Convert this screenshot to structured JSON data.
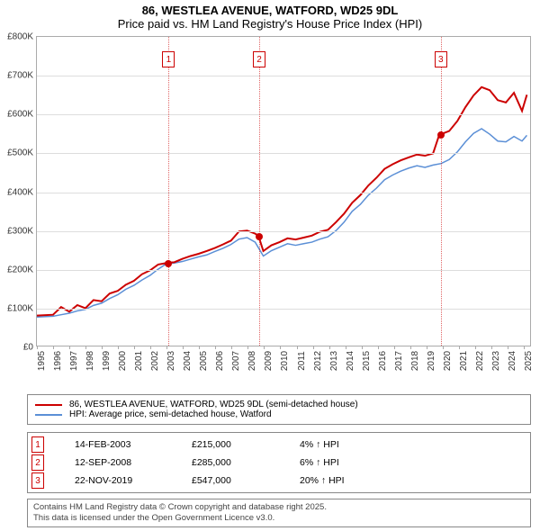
{
  "title": {
    "main": "86, WESTLEA AVENUE, WATFORD, WD25 9DL",
    "sub": "Price paid vs. HM Land Registry's House Price Index (HPI)"
  },
  "chart": {
    "type": "line",
    "background_color": "#ffffff",
    "grid_color": "#dddddd",
    "axis_color": "#aaaaaa",
    "ylim": [
      0,
      800000
    ],
    "ytick_step": 100000,
    "ytick_labels": [
      "£0",
      "£100K",
      "£200K",
      "£300K",
      "£400K",
      "£500K",
      "£600K",
      "£700K",
      "£800K"
    ],
    "xlim": [
      1995,
      2025.5
    ],
    "xticks": [
      1995,
      1996,
      1997,
      1998,
      1999,
      2000,
      2001,
      2002,
      2003,
      2004,
      2005,
      2006,
      2007,
      2008,
      2009,
      2010,
      2011,
      2012,
      2013,
      2014,
      2015,
      2016,
      2017,
      2018,
      2019,
      2020,
      2021,
      2022,
      2023,
      2024,
      2025
    ],
    "series": [
      {
        "name": "86, WESTLEA AVENUE, WATFORD, WD25 9DL (semi-detached house)",
        "color": "#cc0000",
        "width": 2,
        "points": [
          [
            1995,
            78000
          ],
          [
            1996,
            80000
          ],
          [
            1996.5,
            100000
          ],
          [
            1997,
            88000
          ],
          [
            1997.5,
            105000
          ],
          [
            1998,
            97000
          ],
          [
            1998.5,
            118000
          ],
          [
            1999,
            115000
          ],
          [
            1999.5,
            135000
          ],
          [
            2000,
            142000
          ],
          [
            2000.5,
            158000
          ],
          [
            2001,
            168000
          ],
          [
            2001.5,
            185000
          ],
          [
            2002,
            195000
          ],
          [
            2002.5,
            210000
          ],
          [
            2003.12,
            215000
          ],
          [
            2003.5,
            216000
          ],
          [
            2004,
            225000
          ],
          [
            2004.5,
            232000
          ],
          [
            2005,
            238000
          ],
          [
            2005.5,
            245000
          ],
          [
            2006,
            253000
          ],
          [
            2006.5,
            262000
          ],
          [
            2007,
            272000
          ],
          [
            2007.5,
            296000
          ],
          [
            2008,
            298000
          ],
          [
            2008.5,
            290000
          ],
          [
            2008.7,
            285000
          ],
          [
            2009,
            245000
          ],
          [
            2009.5,
            260000
          ],
          [
            2010,
            268000
          ],
          [
            2010.5,
            278000
          ],
          [
            2011,
            275000
          ],
          [
            2011.5,
            280000
          ],
          [
            2012,
            285000
          ],
          [
            2012.5,
            295000
          ],
          [
            2013,
            300000
          ],
          [
            2013.5,
            320000
          ],
          [
            2014,
            342000
          ],
          [
            2014.5,
            370000
          ],
          [
            2015,
            390000
          ],
          [
            2015.5,
            415000
          ],
          [
            2016,
            435000
          ],
          [
            2016.5,
            458000
          ],
          [
            2017,
            470000
          ],
          [
            2017.5,
            480000
          ],
          [
            2018,
            488000
          ],
          [
            2018.5,
            495000
          ],
          [
            2019,
            492000
          ],
          [
            2019.5,
            498000
          ],
          [
            2019.89,
            547000
          ],
          [
            2020,
            548000
          ],
          [
            2020.5,
            556000
          ],
          [
            2021,
            582000
          ],
          [
            2021.5,
            618000
          ],
          [
            2022,
            648000
          ],
          [
            2022.5,
            670000
          ],
          [
            2023,
            662000
          ],
          [
            2023.5,
            636000
          ],
          [
            2024,
            630000
          ],
          [
            2024.5,
            655000
          ],
          [
            2025,
            608000
          ],
          [
            2025.3,
            650000
          ]
        ]
      },
      {
        "name": "HPI: Average price, semi-detached house, Watford",
        "color": "#5b8fd6",
        "width": 1.5,
        "points": [
          [
            1995,
            74000
          ],
          [
            1996,
            76000
          ],
          [
            1996.5,
            80000
          ],
          [
            1997,
            84000
          ],
          [
            1997.5,
            90000
          ],
          [
            1998,
            94000
          ],
          [
            1998.5,
            104000
          ],
          [
            1999,
            110000
          ],
          [
            1999.5,
            122000
          ],
          [
            2000,
            132000
          ],
          [
            2000.5,
            146000
          ],
          [
            2001,
            156000
          ],
          [
            2001.5,
            170000
          ],
          [
            2002,
            182000
          ],
          [
            2002.5,
            198000
          ],
          [
            2003,
            212000
          ],
          [
            2003.5,
            214000
          ],
          [
            2004,
            218000
          ],
          [
            2004.5,
            224000
          ],
          [
            2005,
            230000
          ],
          [
            2005.5,
            235000
          ],
          [
            2006,
            244000
          ],
          [
            2006.5,
            252000
          ],
          [
            2007,
            262000
          ],
          [
            2007.5,
            276000
          ],
          [
            2008,
            280000
          ],
          [
            2008.5,
            268000
          ],
          [
            2009,
            232000
          ],
          [
            2009.5,
            246000
          ],
          [
            2010,
            255000
          ],
          [
            2010.5,
            264000
          ],
          [
            2011,
            260000
          ],
          [
            2011.5,
            264000
          ],
          [
            2012,
            268000
          ],
          [
            2012.5,
            276000
          ],
          [
            2013,
            282000
          ],
          [
            2013.5,
            298000
          ],
          [
            2014,
            320000
          ],
          [
            2014.5,
            348000
          ],
          [
            2015,
            366000
          ],
          [
            2015.5,
            390000
          ],
          [
            2016,
            408000
          ],
          [
            2016.5,
            430000
          ],
          [
            2017,
            442000
          ],
          [
            2017.5,
            452000
          ],
          [
            2018,
            460000
          ],
          [
            2018.5,
            466000
          ],
          [
            2019,
            462000
          ],
          [
            2019.5,
            468000
          ],
          [
            2020,
            472000
          ],
          [
            2020.5,
            482000
          ],
          [
            2021,
            502000
          ],
          [
            2021.5,
            528000
          ],
          [
            2022,
            550000
          ],
          [
            2022.5,
            562000
          ],
          [
            2023,
            548000
          ],
          [
            2023.5,
            530000
          ],
          [
            2024,
            528000
          ],
          [
            2024.5,
            542000
          ],
          [
            2025,
            530000
          ],
          [
            2025.3,
            545000
          ]
        ]
      }
    ],
    "sale_markers": [
      {
        "num": "1",
        "x": 2003.12,
        "y": 215000
      },
      {
        "num": "2",
        "x": 2008.7,
        "y": 285000
      },
      {
        "num": "3",
        "x": 2019.89,
        "y": 547000
      }
    ],
    "marker_color": "#cc0000",
    "marker_border": "#cc0000",
    "vline_color": "#cc0000"
  },
  "legend": {
    "items": [
      {
        "color": "#cc0000",
        "label": "86, WESTLEA AVENUE, WATFORD, WD25 9DL (semi-detached house)"
      },
      {
        "color": "#5b8fd6",
        "label": "HPI: Average price, semi-detached house, Watford"
      }
    ]
  },
  "sales_table": {
    "rows": [
      {
        "num": "1",
        "date": "14-FEB-2003",
        "price": "£215,000",
        "hpi": "4% ↑ HPI",
        "border": "#cc0000"
      },
      {
        "num": "2",
        "date": "12-SEP-2008",
        "price": "£285,000",
        "hpi": "6% ↑ HPI",
        "border": "#cc0000"
      },
      {
        "num": "3",
        "date": "22-NOV-2019",
        "price": "£547,000",
        "hpi": "20% ↑ HPI",
        "border": "#cc0000"
      }
    ]
  },
  "attribution": {
    "line1": "Contains HM Land Registry data © Crown copyright and database right 2025.",
    "line2": "This data is licensed under the Open Government Licence v3.0."
  }
}
